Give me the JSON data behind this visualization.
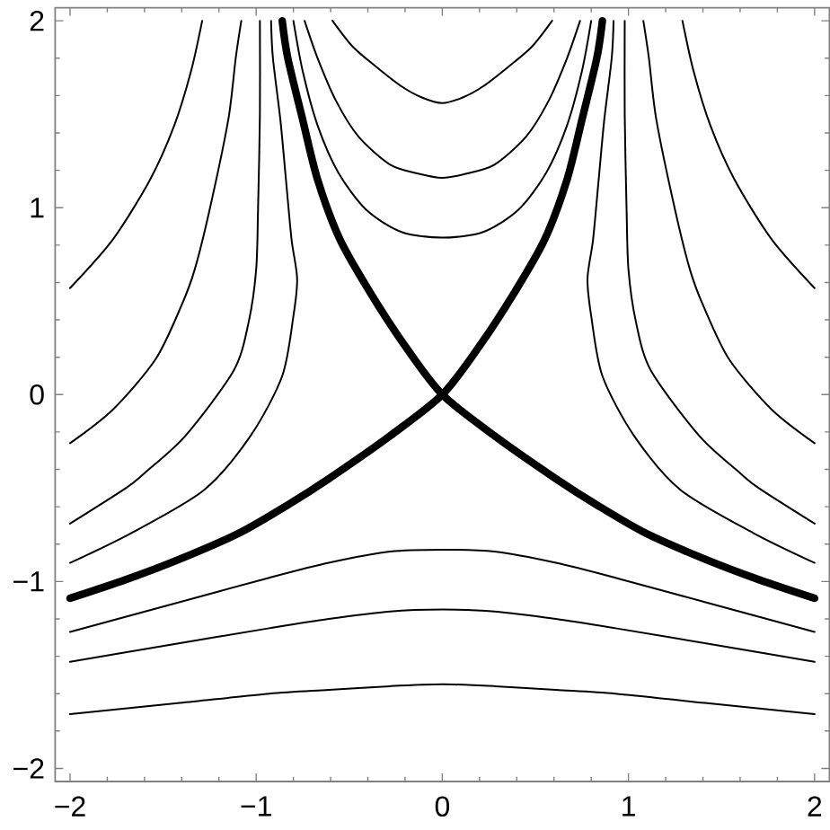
{
  "chart_data": {
    "type": "line",
    "line_style": "solid",
    "xlim": [
      -2.08,
      2.08
    ],
    "ylim": [
      -2.07,
      2.07
    ],
    "xticks": [
      {
        "value": -2,
        "label": "−2"
      },
      {
        "value": -1.8,
        "label": null
      },
      {
        "value": -1.6,
        "label": null
      },
      {
        "value": -1.4,
        "label": null
      },
      {
        "value": -1.2,
        "label": null
      },
      {
        "value": -1,
        "label": "−1"
      },
      {
        "value": -0.8,
        "label": null
      },
      {
        "value": -0.6,
        "label": null
      },
      {
        "value": -0.4,
        "label": null
      },
      {
        "value": -0.2,
        "label": null
      },
      0,
      {
        "value": 0.2,
        "label": null
      },
      {
        "value": 0.4,
        "label": null
      },
      {
        "value": 0.6,
        "label": null
      },
      {
        "value": 0.8,
        "label": null
      },
      1,
      {
        "value": 1.2,
        "label": null
      },
      {
        "value": 1.4,
        "label": null
      },
      {
        "value": 1.6,
        "label": null
      },
      {
        "value": 1.8,
        "label": null
      },
      2
    ],
    "yticks": [
      {
        "value": -2,
        "label": "−2"
      },
      {
        "value": -1.8,
        "label": null
      },
      {
        "value": -1.6,
        "label": null
      },
      {
        "value": -1.4,
        "label": null
      },
      {
        "value": -1.2,
        "label": null
      },
      {
        "value": -1,
        "label": "−1"
      },
      {
        "value": -0.8,
        "label": null
      },
      {
        "value": -0.6,
        "label": null
      },
      {
        "value": -0.4,
        "label": null
      },
      {
        "value": -0.2,
        "label": null
      },
      0,
      {
        "value": 0.2,
        "label": null
      },
      {
        "value": 0.4,
        "label": null
      },
      {
        "value": 0.6,
        "label": null
      },
      {
        "value": 0.8,
        "label": null
      },
      1,
      {
        "value": 1.2,
        "label": null
      },
      {
        "value": 1.4,
        "label": null
      },
      {
        "value": 1.6,
        "label": null
      },
      {
        "value": 1.8,
        "label": null
      },
      2
    ],
    "series": [
      {
        "color": "#000000",
        "x": [
          -2.0,
          -1.7,
          -1.41,
          -1.09,
          -0.83,
          -0.61,
          -0.28,
          0,
          0.2,
          0.39,
          0.55,
          0.67,
          0.75,
          0.83,
          0.86
        ],
        "values": [
          -1.09,
          -0.99,
          -0.88,
          -0.74,
          -0.59,
          -0.45,
          -0.22,
          0,
          0.26,
          0.55,
          0.83,
          1.15,
          1.47,
          1.8,
          2.0
        ]
      },
      {
        "color": "#000000",
        "x": [
          2.0,
          1.7,
          1.41,
          1.09,
          0.83,
          0.61,
          0.28,
          0,
          -0.2,
          -0.39,
          -0.55,
          -0.67,
          -0.75,
          -0.83,
          -0.86
        ],
        "values": [
          -1.09,
          -0.99,
          -0.88,
          -0.74,
          -0.59,
          -0.45,
          -0.22,
          0,
          0.26,
          0.55,
          0.83,
          1.15,
          1.47,
          1.8,
          2.0
        ]
      },
      {
        "color": "#000000",
        "x": [
          -2.0,
          -1.77,
          -1.57,
          -1.44,
          -1.35,
          -1.29
        ],
        "values": [
          0.57,
          0.83,
          1.15,
          1.44,
          1.73,
          2.0
        ]
      },
      {
        "color": "#000000",
        "x": [
          -2.0,
          -1.77,
          -1.54,
          -1.4,
          -1.33,
          -1.25,
          -1.15,
          -1.11,
          -1.08
        ],
        "values": [
          -0.26,
          -0.08,
          0.19,
          0.48,
          0.67,
          0.99,
          1.47,
          1.8,
          2.0
        ]
      },
      {
        "color": "#000000",
        "x": [
          -2.0,
          -1.7,
          -1.6,
          -1.38,
          -1.12,
          -1.04,
          -1.0,
          -0.99,
          -0.98,
          -0.98
        ],
        "values": [
          -0.69,
          -0.5,
          -0.42,
          -0.22,
          0.13,
          0.39,
          0.67,
          0.99,
          1.5,
          2.0
        ]
      },
      {
        "color": "#000000",
        "x": [
          -2.0,
          -1.67,
          -1.28,
          -1.03,
          -0.86,
          -0.8,
          -0.78,
          -0.81,
          -0.84,
          -0.87,
          -0.91,
          -0.92
        ],
        "values": [
          -0.9,
          -0.74,
          -0.51,
          -0.22,
          0.1,
          0.42,
          0.62,
          0.83,
          1.15,
          1.47,
          1.8,
          2.0
        ]
      },
      {
        "color": "#000000",
        "x": [
          2.0,
          1.77,
          1.57,
          1.44,
          1.35,
          1.29
        ],
        "values": [
          0.57,
          0.83,
          1.15,
          1.44,
          1.73,
          2.0
        ]
      },
      {
        "color": "#000000",
        "x": [
          2.0,
          1.77,
          1.54,
          1.4,
          1.33,
          1.25,
          1.15,
          1.11,
          1.08
        ],
        "values": [
          -0.26,
          -0.08,
          0.19,
          0.48,
          0.67,
          0.99,
          1.47,
          1.8,
          2.0
        ]
      },
      {
        "color": "#000000",
        "x": [
          2.0,
          1.7,
          1.6,
          1.38,
          1.12,
          1.04,
          1.0,
          0.99,
          0.98,
          0.98
        ],
        "values": [
          -0.69,
          -0.5,
          -0.42,
          -0.22,
          0.13,
          0.39,
          0.67,
          0.99,
          1.5,
          2.0
        ]
      },
      {
        "color": "#000000",
        "x": [
          2.0,
          1.67,
          1.28,
          1.03,
          0.86,
          0.8,
          0.78,
          0.81,
          0.84,
          0.87,
          0.91,
          0.92
        ],
        "values": [
          -0.9,
          -0.74,
          -0.51,
          -0.22,
          0.1,
          0.42,
          0.62,
          0.83,
          1.15,
          1.47,
          1.8,
          2.0
        ]
      },
      {
        "color": "#000000",
        "x": [
          -0.59,
          -0.48,
          -0.35,
          -0.22,
          -0.11,
          0,
          0.11,
          0.22,
          0.35,
          0.48,
          0.59
        ],
        "values": [
          2.0,
          1.86,
          1.75,
          1.65,
          1.59,
          1.56,
          1.59,
          1.65,
          1.75,
          1.86,
          2.0
        ]
      },
      {
        "color": "#000000",
        "x": [
          -0.74,
          -0.67,
          -0.57,
          -0.45,
          -0.28,
          -0.12,
          0,
          0.12,
          0.28,
          0.45,
          0.57,
          0.67,
          0.74
        ],
        "values": [
          2.0,
          1.8,
          1.57,
          1.38,
          1.23,
          1.18,
          1.16,
          1.18,
          1.23,
          1.38,
          1.57,
          1.8,
          2.0
        ]
      },
      {
        "color": "#000000",
        "x": [
          -0.8,
          -0.75,
          -0.67,
          -0.56,
          -0.41,
          -0.22,
          0,
          0.22,
          0.41,
          0.56,
          0.67,
          0.75,
          0.8
        ],
        "values": [
          2.0,
          1.73,
          1.44,
          1.19,
          0.99,
          0.87,
          0.84,
          0.87,
          0.99,
          1.19,
          1.44,
          1.73,
          2.0
        ]
      },
      {
        "color": "#000000",
        "x": [
          -2.0,
          -1.41,
          -0.93,
          -0.61,
          -0.28,
          0,
          0.28,
          0.61,
          0.93,
          1.41,
          2.0
        ],
        "values": [
          -1.27,
          -1.11,
          -0.98,
          -0.9,
          -0.84,
          -0.83,
          -0.84,
          -0.9,
          -0.98,
          -1.11,
          -1.27
        ]
      },
      {
        "color": "#000000",
        "x": [
          -2.0,
          -1.41,
          -0.93,
          -0.61,
          -0.28,
          0,
          0.28,
          0.61,
          0.93,
          1.41,
          2.0
        ],
        "values": [
          -1.43,
          -1.33,
          -1.25,
          -1.2,
          -1.16,
          -1.15,
          -1.16,
          -1.2,
          -1.25,
          -1.33,
          -1.43
        ]
      },
      {
        "color": "#000000",
        "x": [
          -2.0,
          -1.41,
          -0.93,
          -0.61,
          -0.28,
          0,
          0.28,
          0.61,
          0.93,
          1.41,
          2.0
        ],
        "values": [
          -1.71,
          -1.65,
          -1.6,
          -1.58,
          -1.56,
          -1.55,
          -1.56,
          -1.58,
          -1.6,
          -1.65,
          -1.71
        ]
      }
    ]
  }
}
